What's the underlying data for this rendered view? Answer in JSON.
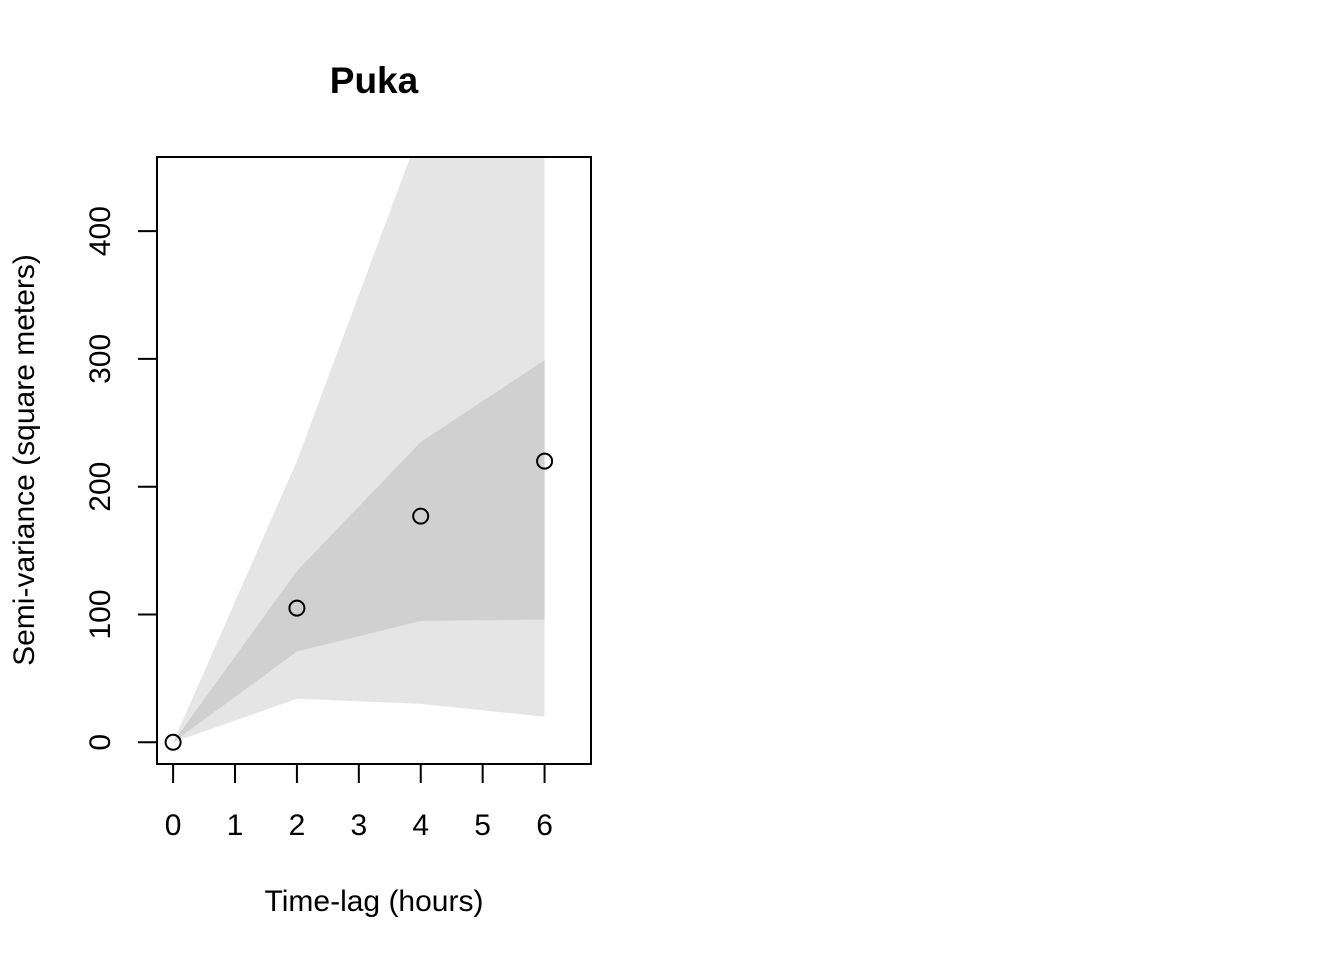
{
  "chart_data": {
    "type": "scatter",
    "title": "Puka",
    "xlabel": "Time-lag (hours)",
    "ylabel": "Semi-variance (square meters)",
    "xlim": [
      -0.26,
      6.75
    ],
    "ylim": [
      -17,
      458
    ],
    "x_ticks": [
      0,
      1,
      2,
      3,
      4,
      5,
      6
    ],
    "y_ticks": [
      0,
      100,
      200,
      300,
      400
    ],
    "points": [
      {
        "x": 0,
        "y": 0
      },
      {
        "x": 2,
        "y": 105
      },
      {
        "x": 4,
        "y": 177
      },
      {
        "x": 6,
        "y": 220
      }
    ],
    "bands": [
      {
        "level": "outer",
        "color": "#e5e5e5",
        "x": [
          0,
          2,
          4,
          6
        ],
        "lower": [
          0,
          34,
          30,
          20
        ],
        "upper": [
          0,
          220,
          480,
          480
        ]
      },
      {
        "level": "inner",
        "color": "#d0d0d0",
        "x": [
          0,
          2,
          4,
          6
        ],
        "lower": [
          0,
          71,
          95,
          96
        ],
        "upper": [
          0,
          134,
          235,
          299
        ]
      }
    ],
    "grid": false,
    "legend": "none"
  }
}
